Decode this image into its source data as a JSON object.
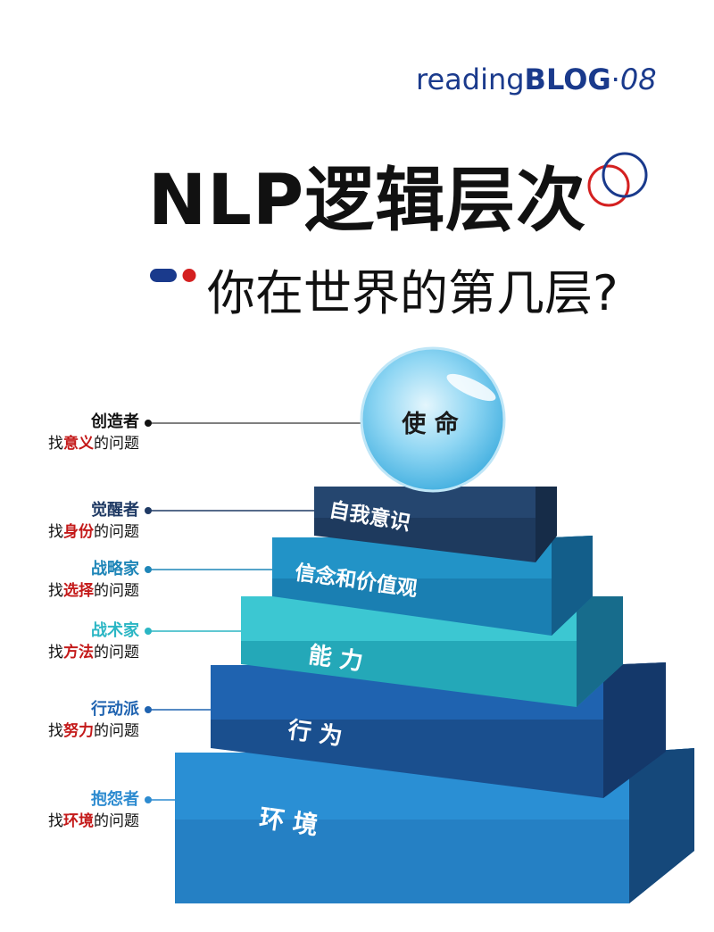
{
  "brand": {
    "prefix": "reading",
    "bold": "BLOG",
    "sep": "·",
    "num": "08"
  },
  "title": "NLP逻辑层次",
  "subtitle": "你在世界的第几层?",
  "levels": [
    {
      "label": "使 命",
      "role": "创造者",
      "find": "找",
      "keyword": "意义",
      "suffix": "的问题",
      "role_color": "#111111"
    },
    {
      "label": "自我意识",
      "role": "觉醒者",
      "find": "找",
      "keyword": "身份",
      "suffix": "的问题",
      "role_color": "#1f3a64"
    },
    {
      "label": "信念和价值观",
      "role": "战略家",
      "find": "找",
      "keyword": "选择",
      "suffix": "的问题",
      "role_color": "#1f86b8"
    },
    {
      "label": "能 力",
      "role": "战术家",
      "find": "找",
      "keyword": "方法",
      "suffix": "的问题",
      "role_color": "#2bb6c4"
    },
    {
      "label": "行 为",
      "role": "行动派",
      "find": "找",
      "keyword": "努力",
      "suffix": "的问题",
      "role_color": "#1f63b0"
    },
    {
      "label": "环 境",
      "role": "抱怨者",
      "find": "找",
      "keyword": "环境",
      "suffix": "的问题",
      "role_color": "#2d8bd0"
    }
  ],
  "colors": {
    "accent_blue": "#1a3a8c",
    "accent_red": "#d42020"
  }
}
